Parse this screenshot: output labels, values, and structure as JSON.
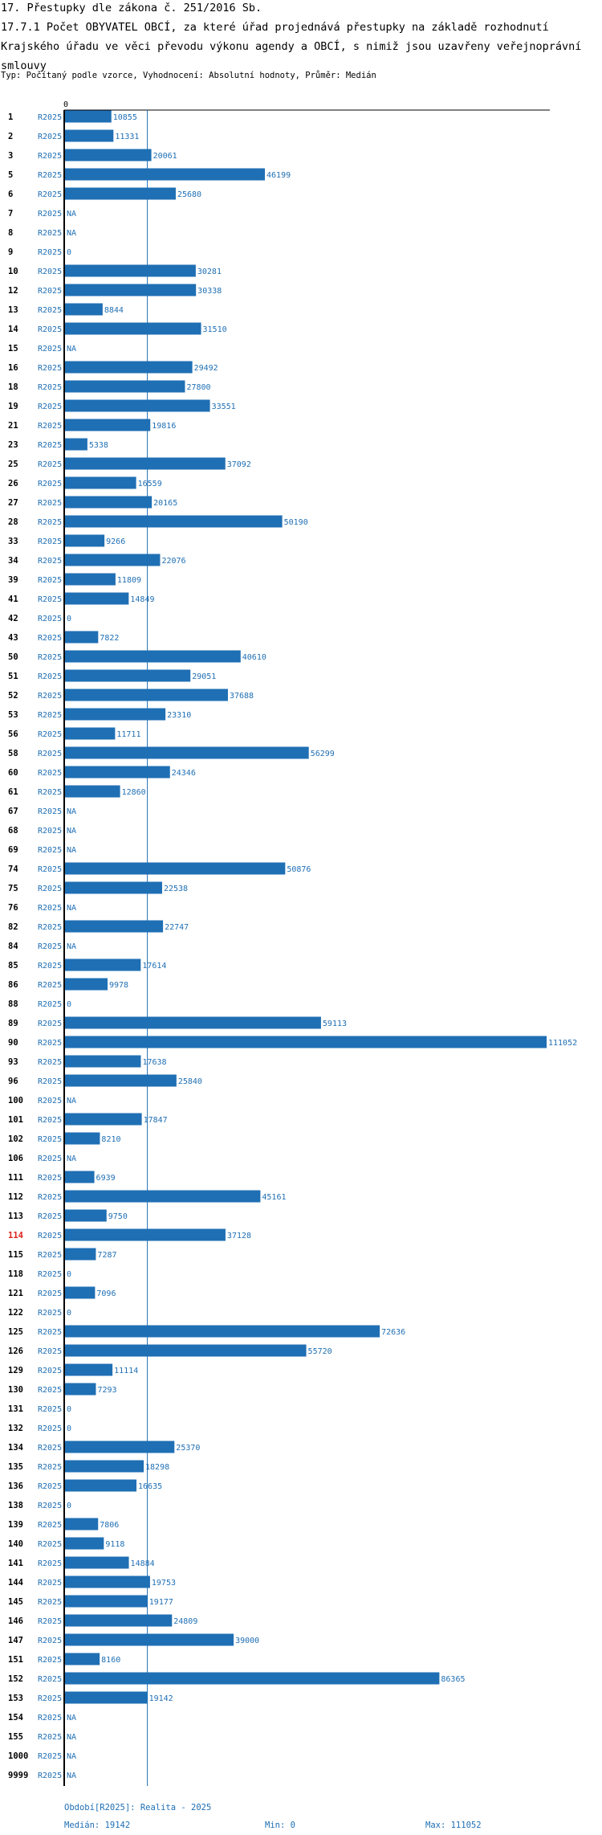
{
  "header": {
    "title1": "17. Přestupky dle zákona č. 251/2016 Sb.",
    "title2": "17.7.1 Počet OBYVATEL OBCÍ, za které úřad projednává přestupky na základě rozhodnutí Krajského úřadu ve věci převodu výkonu agendy a OBCÍ, s nimiž jsou uzavřeny veřejnoprávní smlouvy",
    "typ": "Typ: Počítaný podle vzorce, Vyhodnocení: Absolutní hodnoty, Průměr: Medián"
  },
  "footer": {
    "obdobi": "Období[R2025]: Realita - 2025",
    "median": "Medián: 19142",
    "min": "Min: 0",
    "max": "Max: 111052"
  },
  "colors": {
    "bar": "#1f6fb4",
    "highlight": "#e0201b"
  },
  "chart_data": {
    "type": "bar",
    "orientation": "horizontal",
    "axis_zero_label": "0",
    "period": "R2025",
    "median": 19142,
    "xlim": [
      0,
      111052
    ],
    "highlight": "114",
    "categories": [
      "1",
      "2",
      "3",
      "5",
      "6",
      "7",
      "8",
      "9",
      "10",
      "12",
      "13",
      "14",
      "15",
      "16",
      "18",
      "19",
      "21",
      "23",
      "25",
      "26",
      "27",
      "28",
      "33",
      "34",
      "39",
      "41",
      "42",
      "43",
      "50",
      "51",
      "52",
      "53",
      "56",
      "58",
      "60",
      "61",
      "67",
      "68",
      "69",
      "74",
      "75",
      "76",
      "82",
      "84",
      "85",
      "86",
      "88",
      "89",
      "90",
      "93",
      "96",
      "100",
      "101",
      "102",
      "106",
      "111",
      "112",
      "113",
      "114",
      "115",
      "118",
      "121",
      "122",
      "125",
      "126",
      "129",
      "130",
      "131",
      "132",
      "134",
      "135",
      "136",
      "138",
      "139",
      "140",
      "141",
      "144",
      "145",
      "146",
      "147",
      "151",
      "152",
      "153",
      "154",
      "155",
      "1000",
      "9999"
    ],
    "values": [
      10855,
      11331,
      20061,
      46199,
      25680,
      "NA",
      "NA",
      0,
      30281,
      30338,
      8844,
      31510,
      "NA",
      29492,
      27800,
      33551,
      19816,
      5338,
      37092,
      16559,
      20165,
      50190,
      9266,
      22076,
      11809,
      14849,
      0,
      7822,
      40610,
      29051,
      37688,
      23310,
      11711,
      56299,
      24346,
      12860,
      "NA",
      "NA",
      "NA",
      50876,
      22538,
      "NA",
      22747,
      "NA",
      17614,
      9978,
      0,
      59113,
      111052,
      17638,
      25840,
      "NA",
      17847,
      8210,
      "NA",
      6939,
      45161,
      9750,
      37128,
      7287,
      0,
      7096,
      0,
      72636,
      55720,
      11114,
      7293,
      0,
      0,
      25370,
      18298,
      16635,
      0,
      7806,
      9118,
      14884,
      19753,
      19177,
      24809,
      39000,
      8160,
      86365,
      19142,
      "NA",
      "NA",
      "NA",
      "NA"
    ]
  }
}
